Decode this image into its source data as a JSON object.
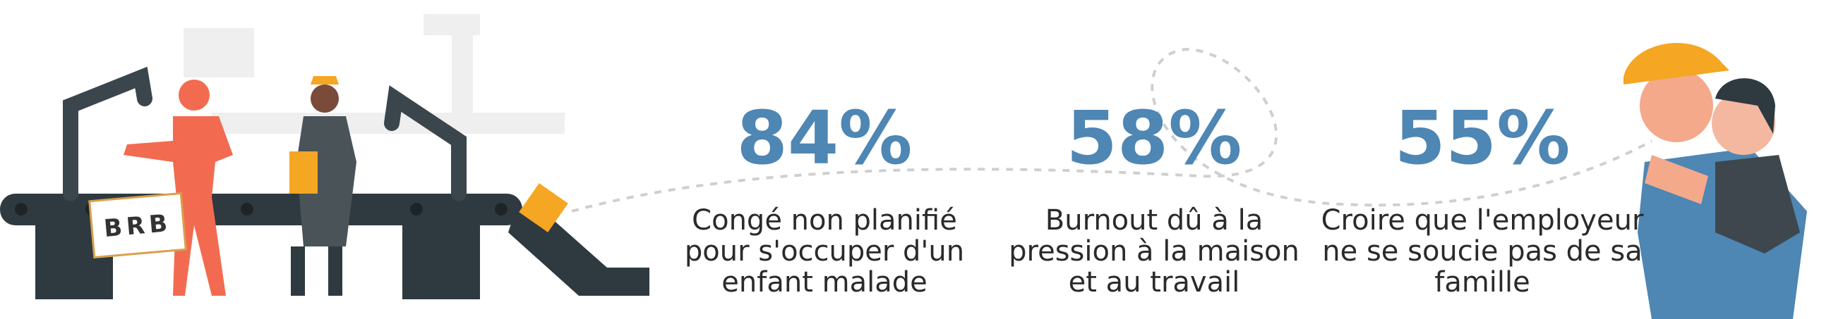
{
  "illustration": {
    "sign_text": "BRB"
  },
  "stats": [
    {
      "value": "84%",
      "label_lines": [
        "Congé non planifié",
        "pour s'occuper d'un",
        "enfant malade"
      ]
    },
    {
      "value": "58%",
      "label_lines": [
        "Burnout dû à la",
        "pression à la maison",
        "et au travail"
      ]
    },
    {
      "value": "55%",
      "label_lines": [
        "Croire que l'employeur",
        "ne se soucie pas de sa",
        "famille"
      ]
    }
  ]
}
